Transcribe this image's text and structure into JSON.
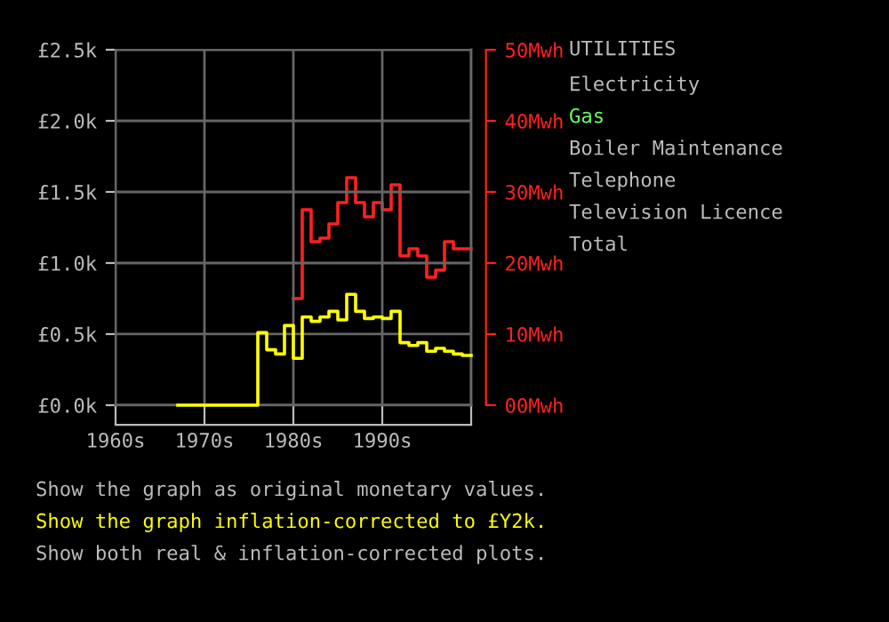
{
  "chart_data": {
    "type": "step",
    "title": "UTILITIES",
    "annotations": [
      "Electricity",
      "Gas",
      "Boiler Maintenance",
      "Telephone",
      "Television Licence",
      "Total",
      "Show the graph as original monetary values.",
      "Show the graph inflation-corrected to £Y2k.",
      "Show both real & inflation-corrected plots."
    ],
    "series": [
      {
        "color": "#ffff00",
        "x": [
          1967,
          1976,
          1977,
          1978,
          1979,
          1980,
          1981,
          1982,
          1983,
          1984,
          1985,
          1986,
          1987,
          1988,
          1989,
          1990,
          1991,
          1992,
          1993,
          1994,
          1995,
          1996,
          1997,
          1998,
          1999,
          2000
        ],
        "values": [
          0,
          510,
          390,
          360,
          560,
          330,
          620,
          590,
          620,
          660,
          600,
          780,
          660,
          610,
          620,
          610,
          660,
          440,
          420,
          440,
          380,
          400,
          380,
          360,
          350,
          350
        ]
      },
      {
        "color": "#ff2020",
        "axis": "y2",
        "x": [
          1980,
          1981,
          1982,
          1983,
          1984,
          1985,
          1986,
          1987,
          1988,
          1989,
          1990,
          1991,
          1992,
          1993,
          1994,
          1995,
          1996,
          1997,
          1998,
          1999,
          2000
        ],
        "values": [
          15,
          27.5,
          23,
          23.5,
          25.5,
          28.5,
          32,
          28.5,
          26.5,
          28.5,
          27.5,
          31,
          21,
          22,
          21,
          18,
          19,
          23,
          22,
          22,
          22
        ]
      }
    ],
    "xlim": [
      1960,
      2000
    ],
    "xticks": [
      {
        "value": 1960,
        "label": "1960s"
      },
      {
        "value": 1970,
        "label": "1970s"
      },
      {
        "value": 1980,
        "label": "1980s"
      },
      {
        "value": 1990,
        "label": "1990s"
      },
      {
        "value": 2000,
        "label": null
      }
    ],
    "ylim": [
      0,
      2500
    ],
    "yticks": [
      {
        "value": 0,
        "label": "£0.0k"
      },
      {
        "value": 500,
        "label": "£0.5k"
      },
      {
        "value": 1000,
        "label": "£1.0k"
      },
      {
        "value": 1500,
        "label": "£1.5k"
      },
      {
        "value": 2000,
        "label": "£2.0k"
      },
      {
        "value": 2500,
        "label": "£2.5k"
      }
    ],
    "y2lim": [
      0,
      50
    ],
    "y2ticks": [
      {
        "value": 0,
        "label": "00Mwh"
      },
      {
        "value": 10,
        "label": "10Mwh"
      },
      {
        "value": 20,
        "label": "20Mwh"
      },
      {
        "value": 30,
        "label": "30Mwh"
      },
      {
        "value": 40,
        "label": "40Mwh"
      },
      {
        "value": 50,
        "label": "50Mwh"
      }
    ],
    "grid": true,
    "legend": false
  }
}
